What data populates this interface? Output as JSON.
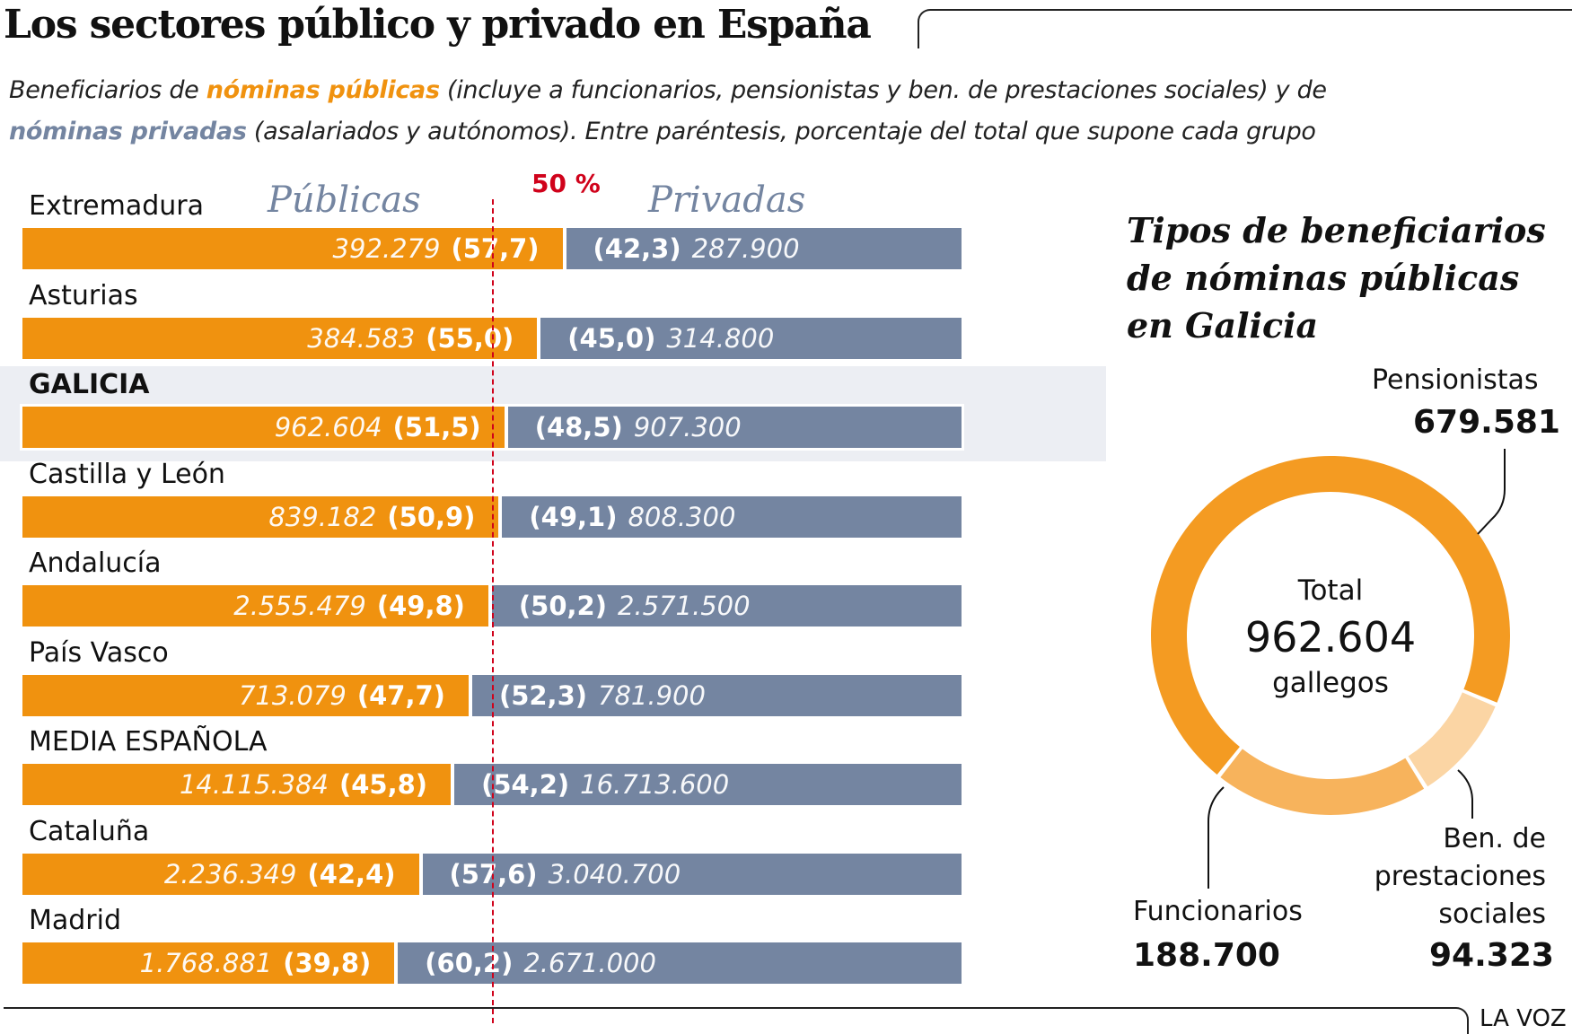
{
  "title": "Los sectores público y privado en España",
  "subtitle": {
    "line1_pre": "Beneficiarios de ",
    "line1_hl": "nóminas públicas",
    "line1_post": " (incluye a funcionarios, pensionistas y ben. de prestaciones sociales) y de",
    "line2_hl": "nóminas privadas",
    "line2_post": " (asalariados y autónomos). Entre paréntesis, porcentaje del total que supone cada grupo"
  },
  "colors": {
    "public": "#f0920f",
    "private": "#7485a1",
    "reference": "#d0021b",
    "highlight_bg": "#eceef3"
  },
  "brand": "LA VOZ",
  "chart_data": [
    {
      "type": "bar",
      "orientation": "horizontal-stacked-100",
      "series_headers": {
        "public": "Públicas",
        "private": "Privadas"
      },
      "reference_line": {
        "value": 50,
        "label": "50 %"
      },
      "xlim": [
        0,
        100
      ],
      "highlight": "GALICIA",
      "categories": [
        "Extremadura",
        "Asturias",
        "GALICIA",
        "Castilla y León",
        "Andalucía",
        "País Vasco",
        "MEDIA ESPAÑOLA",
        "Cataluña",
        "Madrid"
      ],
      "series": [
        {
          "name": "Públicas",
          "values": [
            "392.279",
            "384.583",
            "962.604",
            "839.182",
            "2.555.479",
            "713.079",
            "14.115.384",
            "2.236.349",
            "1.768.881"
          ],
          "percent": [
            57.7,
            55.0,
            51.5,
            50.9,
            49.8,
            47.7,
            45.8,
            42.4,
            39.8
          ],
          "percent_labels": [
            "(57,7)",
            "(55,0)",
            "(51,5)",
            "(50,9)",
            "(49,8)",
            "(47,7)",
            "(45,8)",
            "(42,4)",
            "(39,8)"
          ]
        },
        {
          "name": "Privadas",
          "values": [
            "287.900",
            "314.800",
            "907.300",
            "808.300",
            "2.571.500",
            "781.900",
            "16.713.600",
            "3.040.700",
            "2.671.000"
          ],
          "percent": [
            42.3,
            45.0,
            48.5,
            49.1,
            50.2,
            52.3,
            54.2,
            57.6,
            60.2
          ],
          "percent_labels": [
            "(42,3)",
            "(45,0)",
            "(48,5)",
            "(49,1)",
            "(50,2)",
            "(52,3)",
            "(54,2)",
            "(57,6)",
            "(60,2)"
          ]
        }
      ]
    },
    {
      "type": "pie",
      "variant": "donut",
      "title": "Tipos de beneficiarios de nóminas públicas en Galicia",
      "center": {
        "line1": "Total",
        "line2": "962.604",
        "line3": "gallegos"
      },
      "slices": [
        {
          "label": "Pensionistas",
          "value": 679581,
          "display": "679.581",
          "color": "#f49b22"
        },
        {
          "label": "Ben. de prestaciones sociales",
          "label_lines": [
            "Ben. de",
            "prestaciones",
            "sociales"
          ],
          "value": 94323,
          "display": "94.323",
          "color": "#fbd5a4"
        },
        {
          "label": "Funcionarios",
          "value": 188700,
          "display": "188.700",
          "color": "#f7b35c"
        }
      ]
    }
  ]
}
